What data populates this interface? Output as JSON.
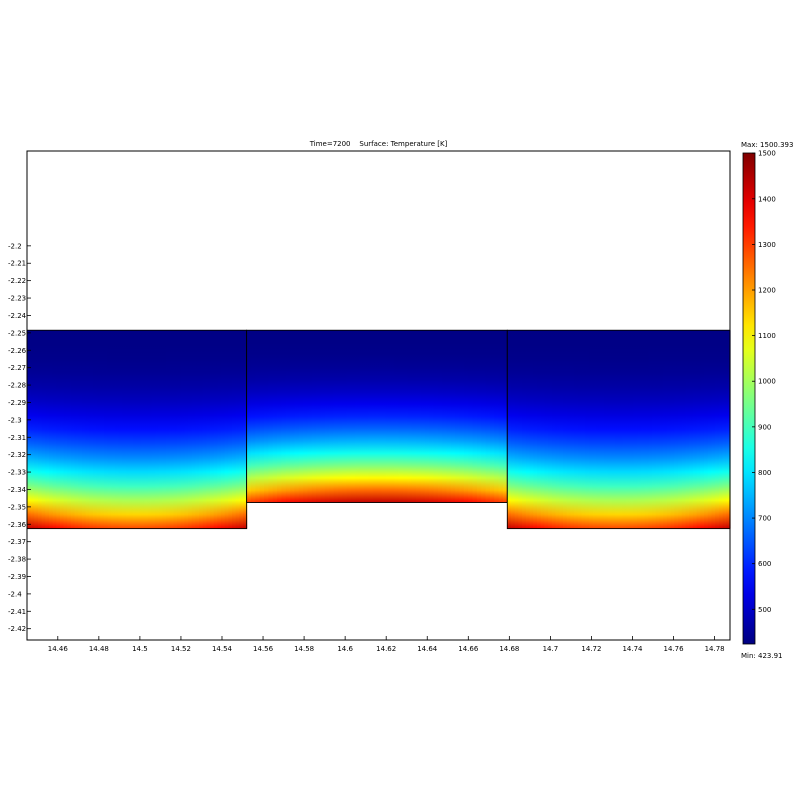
{
  "chart_data": {
    "type": "heatmap",
    "title": "Time=7200    Surface: Temperature [K]",
    "x_ticks": [
      14.46,
      14.48,
      14.5,
      14.52,
      14.54,
      14.56,
      14.58,
      14.6,
      14.62,
      14.64,
      14.66,
      14.68,
      14.7,
      14.72,
      14.74,
      14.76,
      14.78
    ],
    "x_tick_labels": [
      "14.46",
      "14.48",
      "14.5",
      "14.52",
      "14.54",
      "14.56",
      "14.58",
      "14.6",
      "14.62",
      "14.64",
      "14.66",
      "14.68",
      "14.7",
      "14.72",
      "14.74",
      "14.76",
      "14.78"
    ],
    "y_ticks": [
      -2.2,
      -2.21,
      -2.22,
      -2.23,
      -2.24,
      -2.25,
      -2.26,
      -2.27,
      -2.28,
      -2.29,
      -2.3,
      -2.31,
      -2.32,
      -2.33,
      -2.34,
      -2.35,
      -2.36,
      -2.37,
      -2.38,
      -2.39,
      -2.4,
      -2.41,
      -2.42
    ],
    "y_tick_labels": [
      "-2.2",
      "-2.21",
      "-2.22",
      "-2.23",
      "-2.24",
      "-2.25",
      "-2.26",
      "-2.27",
      "-2.28",
      "-2.29",
      "-2.3",
      "-2.31",
      "-2.32",
      "-2.33",
      "-2.34",
      "-2.35",
      "-2.36",
      "-2.37",
      "-2.38",
      "-2.39",
      "-2.4",
      "-2.41",
      "-2.42"
    ],
    "xlim": [
      14.445,
      14.7875
    ],
    "ylim": [
      -2.4265,
      -2.1455
    ],
    "colorbar": {
      "max_label": "Max: 1500.393",
      "min_label": "Min: 423.91",
      "min": 423.91,
      "max": 1500.393,
      "ticks": [
        500,
        600,
        700,
        800,
        900,
        1000,
        1100,
        1200,
        1300,
        1400,
        1500
      ],
      "tick_labels": [
        "500",
        "600",
        "700",
        "800",
        "900",
        "1000",
        "1100",
        "1200",
        "1300",
        "1400",
        "1500"
      ],
      "colormap": "jet"
    },
    "regions": [
      {
        "name": "left-block",
        "x": [
          14.445,
          14.552
        ],
        "y_top": -2.2485,
        "y_bottom": -2.3625,
        "t_top": 430,
        "t_bottom_edge": 1430,
        "t_bottom_center": 1290
      },
      {
        "name": "center-block",
        "x": [
          14.552,
          14.679
        ],
        "y_top": -2.2485,
        "y_bottom": -2.3475,
        "t_top": 430,
        "t_bottom_edge": 1300,
        "t_bottom_center": 1430
      },
      {
        "name": "right-block",
        "x": [
          14.679,
          14.7875
        ],
        "y_top": -2.2485,
        "y_bottom": -2.3625,
        "t_top": 430,
        "t_bottom_edge": 1430,
        "t_bottom_center": 1290
      }
    ]
  }
}
